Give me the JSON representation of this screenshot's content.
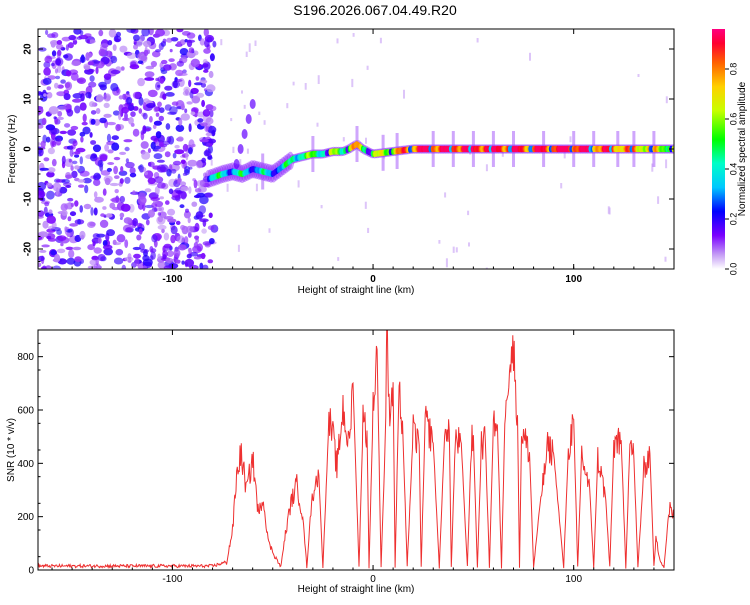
{
  "title": "S196.2026.067.04.49.R20",
  "chart_data": [
    {
      "type": "heatmap",
      "xlabel": "Height of straight line (km)",
      "ylabel": "Frequency (Hz)",
      "xlim": [
        -167,
        150
      ],
      "ylim": [
        -24,
        24
      ],
      "xticks": [
        -100,
        0,
        100
      ],
      "yticks": [
        -20,
        -10,
        0,
        10,
        20
      ],
      "ridge": {
        "x": [
          -82,
          -75,
          -70,
          -65,
          -60,
          -55,
          -50,
          -45,
          -40,
          -35,
          -30,
          -25,
          -20,
          -15,
          -12,
          -10,
          -8,
          -5,
          0,
          10,
          20,
          40,
          60,
          80,
          100,
          120,
          140,
          150
        ],
        "y": [
          -6,
          -5,
          -4.5,
          -5,
          -4,
          -4.5,
          -5,
          -3.5,
          -2,
          -1.5,
          -1,
          -1,
          -0.5,
          -0.5,
          0,
          0.5,
          1,
          0,
          -1,
          -0.5,
          0,
          0,
          0,
          0,
          0,
          0,
          0,
          0
        ],
        "amplitude": [
          0.35,
          0.4,
          0.35,
          0.4,
          0.3,
          0.35,
          0.3,
          0.35,
          0.45,
          0.5,
          0.5,
          0.5,
          0.55,
          0.55,
          0.6,
          0.7,
          0.75,
          0.6,
          0.55,
          0.7,
          0.9,
          0.95,
          0.95,
          0.9,
          0.95,
          0.85,
          0.7,
          0.6
        ]
      },
      "colorbar": {
        "label": "Normalized spectral amplitude",
        "ticks": [
          "0.0",
          "0.2",
          "0.4",
          "0.6",
          "0.8"
        ],
        "range": [
          0,
          0.96
        ]
      }
    },
    {
      "type": "line",
      "xlabel": "Height of straight line (km)",
      "ylabel": "SNR (10 * v/v)",
      "xlim": [
        -167,
        150
      ],
      "ylim": [
        0,
        900
      ],
      "xticks": [
        -100,
        0,
        100
      ],
      "yticks": [
        0,
        200,
        400,
        600,
        800
      ],
      "color": "#ee3030",
      "series": [
        {
          "name": "SNR",
          "x": [
            -167,
            -80,
            -73,
            -70,
            -68,
            -66,
            -63,
            -60,
            -57,
            -55,
            -52,
            -48,
            -46,
            -44,
            -41,
            -38,
            -35,
            -33,
            -31,
            -29,
            -27,
            -25,
            -22,
            -20,
            -18,
            -15,
            -12,
            -10,
            -7,
            -5,
            -3,
            -2,
            0,
            2,
            4,
            6,
            7,
            8,
            10,
            11,
            13,
            14,
            15,
            17,
            20,
            22,
            23,
            24,
            26,
            28,
            30,
            33,
            36,
            38,
            39,
            41,
            44,
            47,
            49,
            50,
            52,
            54,
            56,
            58,
            60,
            62,
            64,
            66,
            68,
            70,
            72,
            73,
            74,
            76,
            78,
            80,
            84,
            85,
            87,
            90,
            95,
            97,
            98,
            100,
            102,
            104,
            106,
            108,
            110,
            112,
            114,
            116,
            118,
            120,
            122,
            124,
            126,
            128,
            130,
            132,
            135,
            138,
            140,
            141,
            143,
            145,
            147,
            148,
            150
          ],
          "y": [
            15,
            15,
            30,
            150,
            350,
            440,
            300,
            420,
            200,
            280,
            100,
            40,
            10,
            120,
            250,
            320,
            200,
            10,
            230,
            330,
            350,
            10,
            560,
            500,
            380,
            610,
            460,
            700,
            10,
            560,
            520,
            10,
            600,
            830,
            10,
            460,
            900,
            600,
            700,
            10,
            720,
            550,
            480,
            10,
            520,
            480,
            470,
            10,
            560,
            520,
            480,
            10,
            560,
            520,
            10,
            490,
            470,
            10,
            480,
            500,
            10,
            470,
            480,
            10,
            560,
            540,
            10,
            650,
            780,
            820,
            580,
            10,
            520,
            480,
            440,
            10,
            300,
            340,
            460,
            440,
            10,
            390,
            480,
            560,
            10,
            440,
            360,
            300,
            10,
            420,
            350,
            260,
            10,
            460,
            500,
            420,
            10,
            480,
            420,
            10,
            380,
            440,
            10,
            120,
            40,
            10,
            180,
            230,
            200
          ]
        }
      ]
    }
  ]
}
